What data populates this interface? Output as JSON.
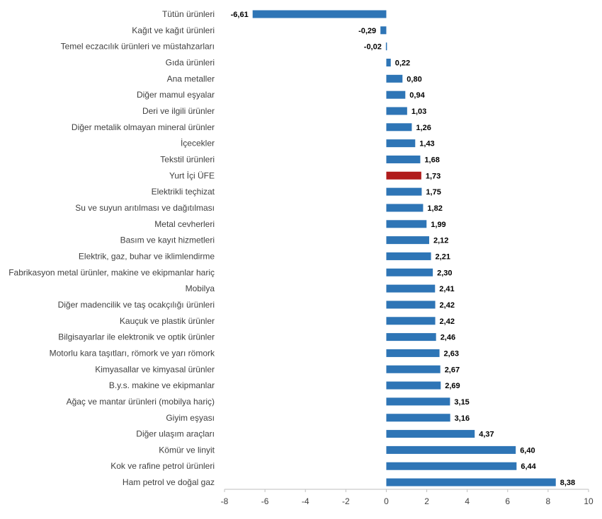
{
  "chart_data": {
    "type": "bar",
    "orientation": "horizontal",
    "categories": [
      "Tütün ürünleri",
      "Kağıt ve kağıt ürünleri",
      "Temel eczacılık ürünleri ve müstahzarları",
      "Gıda ürünleri",
      "Ana metaller",
      "Diğer mamul eşyalar",
      "Deri ve ilgili ürünler",
      "Diğer metalik olmayan mineral ürünler",
      "İçecekler",
      "Tekstil ürünleri",
      "Yurt İçi ÜFE",
      "Elektrikli teçhizat",
      "Su ve suyun arıtılması ve dağıtılması",
      "Metal cevherleri",
      "Basım ve kayıt hizmetleri",
      "Elektrik, gaz, buhar ve iklimlendirme",
      "Fabrikasyon metal ürünler, makine ve ekipmanlar hariç",
      "Mobilya",
      "Diğer madencilik ve taş ocakçılığı ürünleri",
      "Kauçuk ve plastik ürünler",
      "Bilgisayarlar ile elektronik ve optik ürünler",
      "Motorlu kara taşıtları, römork ve yarı römork",
      "Kimyasallar ve kimyasal ürünler",
      "B.y.s. makine ve ekipmanlar",
      "Ağaç ve mantar ürünleri (mobilya hariç)",
      "Giyim eşyası",
      "Diğer ulaşım araçları",
      "Kömür ve linyit",
      "Kok ve rafine petrol ürünleri",
      "Ham petrol ve doğal gaz"
    ],
    "values": [
      -6.61,
      -0.29,
      -0.02,
      0.22,
      0.8,
      0.94,
      1.03,
      1.26,
      1.43,
      1.68,
      1.73,
      1.75,
      1.82,
      1.99,
      2.12,
      2.21,
      2.3,
      2.41,
      2.42,
      2.42,
      2.46,
      2.63,
      2.67,
      2.69,
      3.15,
      3.16,
      4.37,
      6.4,
      6.44,
      8.38
    ],
    "value_labels": [
      "-6,61",
      "-0,29",
      "-0,02",
      "0,22",
      "0,80",
      "0,94",
      "1,03",
      "1,26",
      "1,43",
      "1,68",
      "1,73",
      "1,75",
      "1,82",
      "1,99",
      "2,12",
      "2,21",
      "2,30",
      "2,41",
      "2,42",
      "2,42",
      "2,46",
      "2,63",
      "2,67",
      "2,69",
      "3,15",
      "3,16",
      "4,37",
      "6,40",
      "6,44",
      "8,38"
    ],
    "highlight_category": "Yurt İçi ÜFE",
    "colors": {
      "bar": "#2E75B6",
      "highlight": "#B01C1C",
      "axis": "#BFBFBF"
    },
    "xlim": [
      -8,
      10
    ],
    "x_ticks": [
      "-8",
      "-6",
      "-4",
      "-2",
      "0",
      "2",
      "4",
      "6",
      "8",
      "10"
    ],
    "tick_values": [
      -8,
      -6,
      -4,
      -2,
      0,
      2,
      4,
      6,
      8,
      10
    ],
    "title": "",
    "xlabel": "",
    "ylabel": "",
    "grid": false,
    "legend": "none"
  }
}
